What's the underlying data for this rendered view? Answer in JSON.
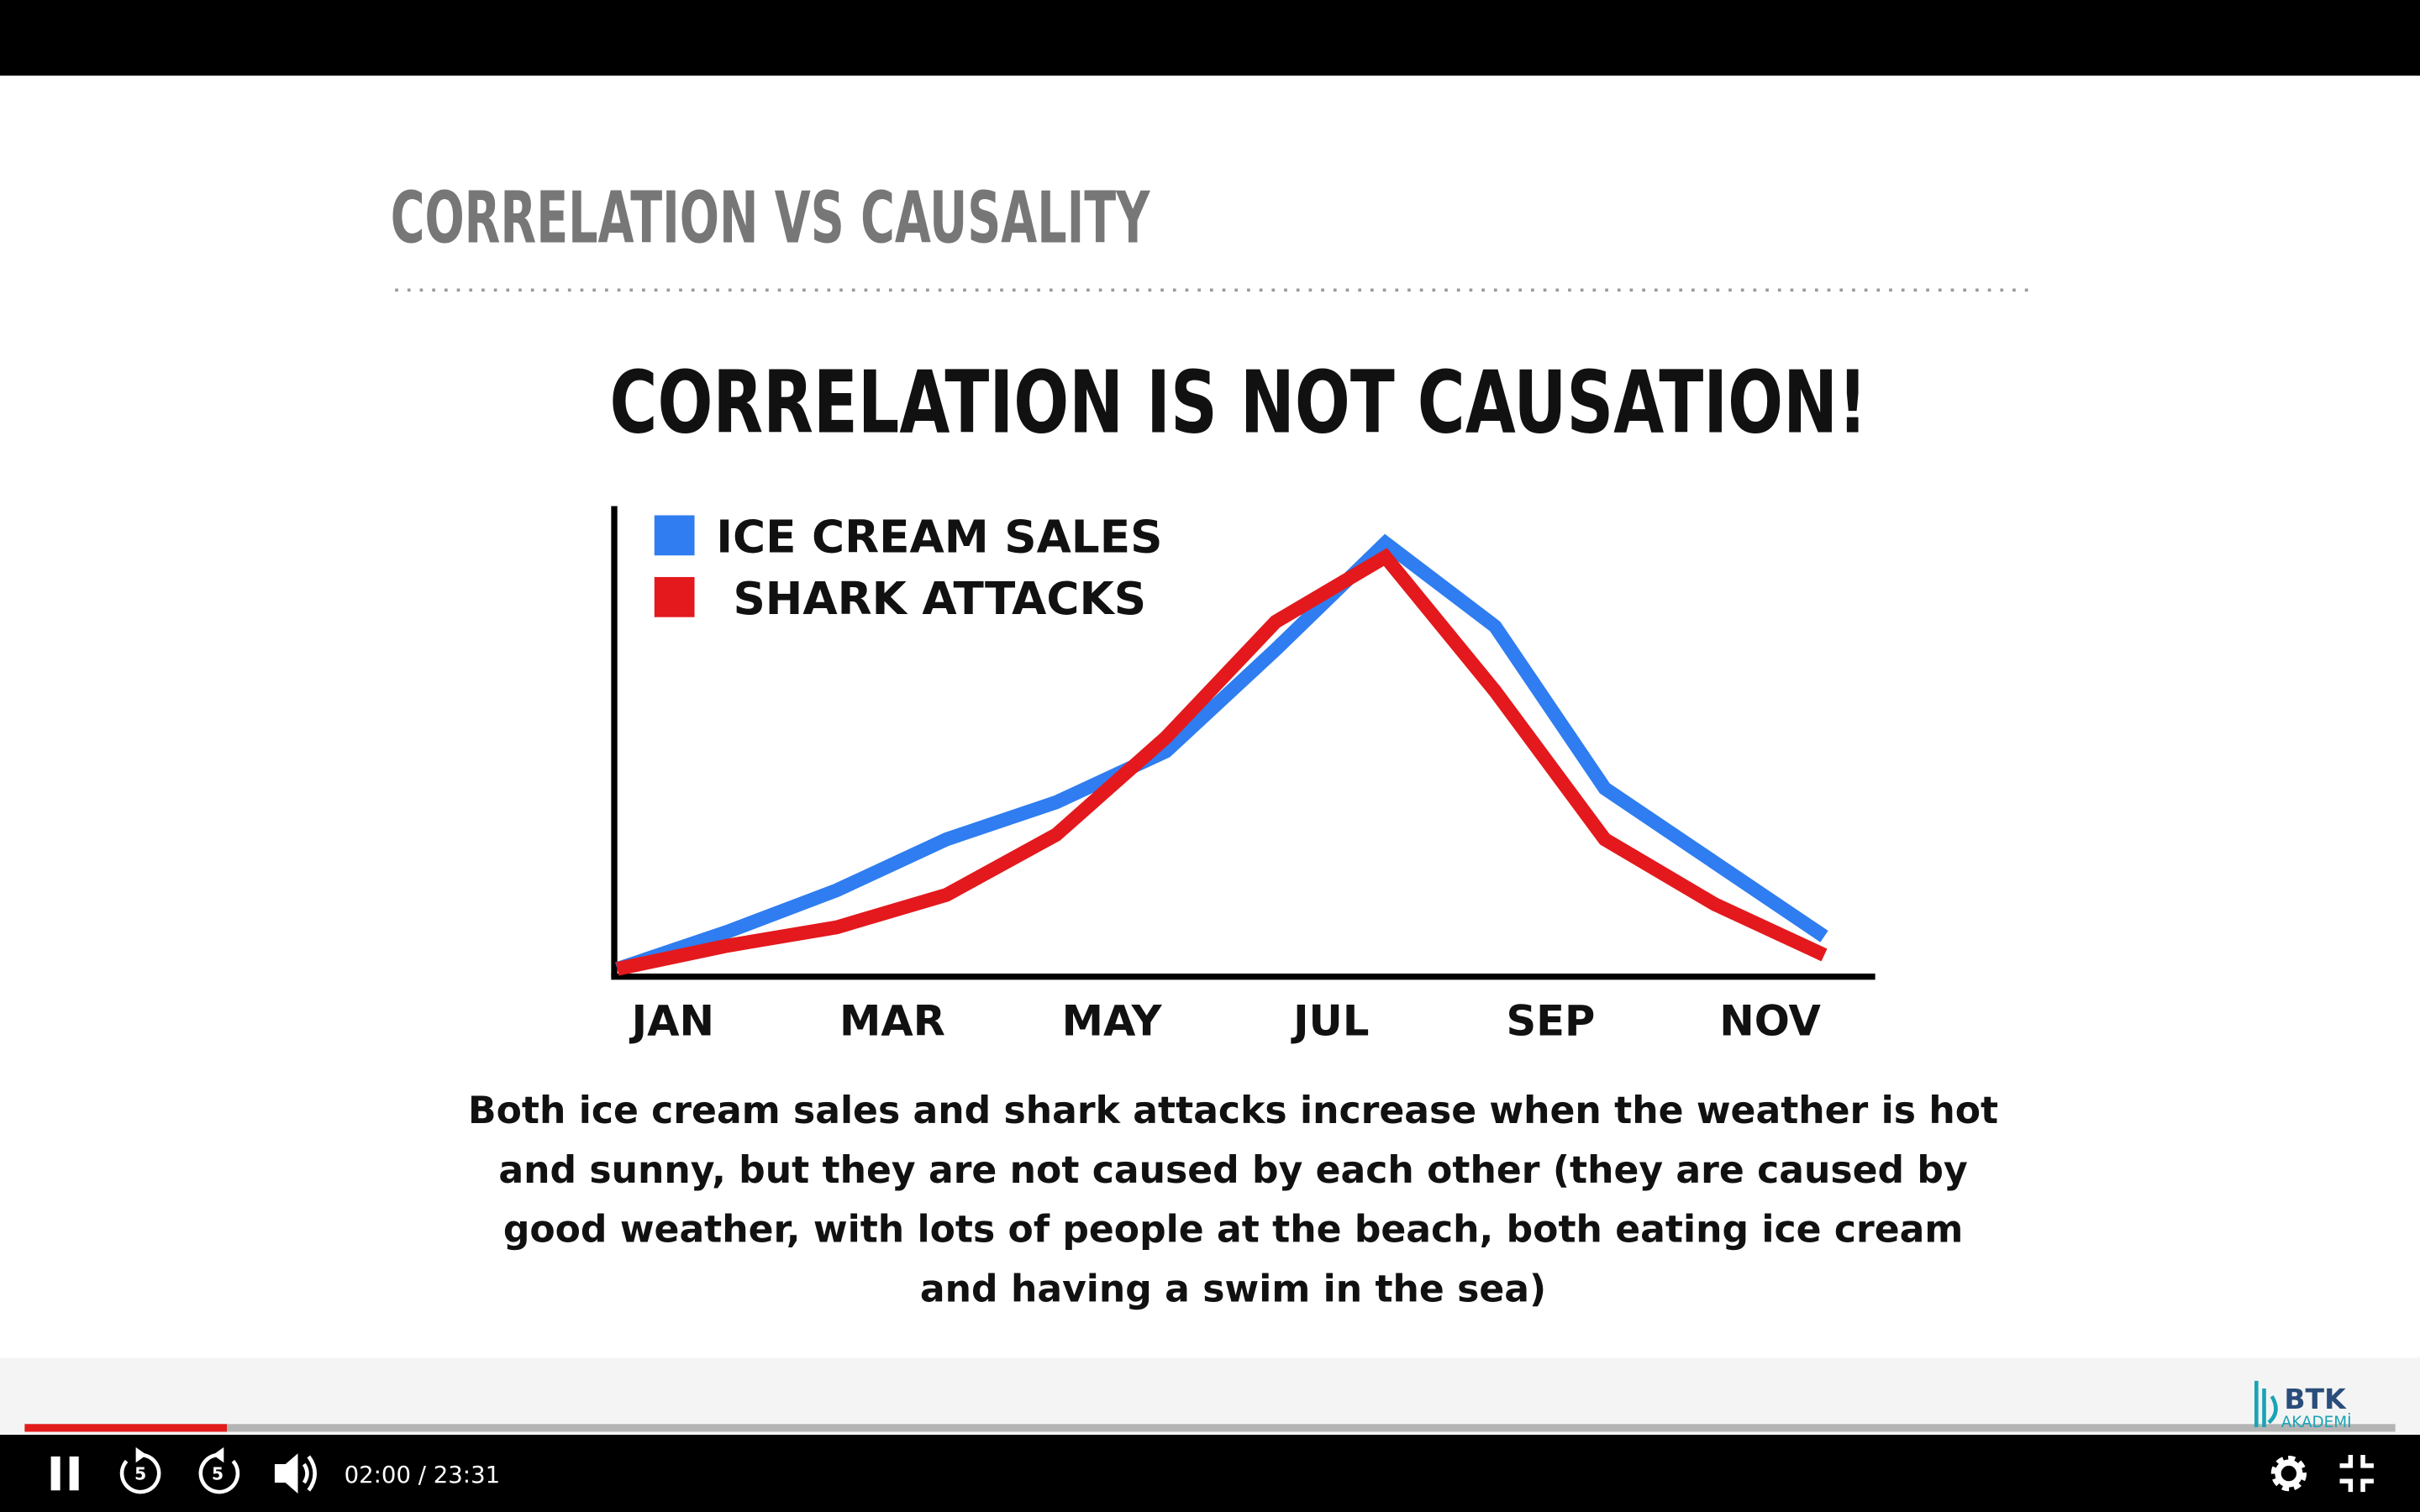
{
  "slide": {
    "header": "CORRELATION VS CAUSALITY"
  },
  "chart_data": {
    "type": "line",
    "title": "CORRELATION IS NOT CAUSATION!",
    "categories": [
      "JAN",
      null,
      "MAR",
      null,
      "MAY",
      null,
      "JUL",
      null,
      "SEP",
      null,
      "NOV",
      null
    ],
    "series": [
      {
        "name": "ICE CREAM SALES",
        "color": "#2f7df0",
        "values": [
          0,
          8,
          17,
          28,
          36,
          47,
          69,
          92,
          74,
          39,
          23,
          7
        ]
      },
      {
        "name": "SHARK ATTACKS",
        "color": "#e3191d",
        "values": [
          0,
          5,
          9,
          16,
          29,
          50,
          75,
          89,
          60,
          28,
          14,
          3
        ]
      }
    ],
    "ylim": [
      0,
      100
    ],
    "legend": "upper left"
  },
  "caption": [
    "Both ice cream sales and shark attacks increase when the weather is hot",
    "and sunny, but they are not caused by each other (they are caused by",
    "good weather, with lots of people at the beach, both eating ice cream",
    "and having a swim in the sea)"
  ],
  "player": {
    "time": "02:00 / 23:31",
    "skip_back": "5",
    "skip_forward": "5",
    "logo_top": "BTK",
    "logo_bottom": "AKADEMİ"
  }
}
